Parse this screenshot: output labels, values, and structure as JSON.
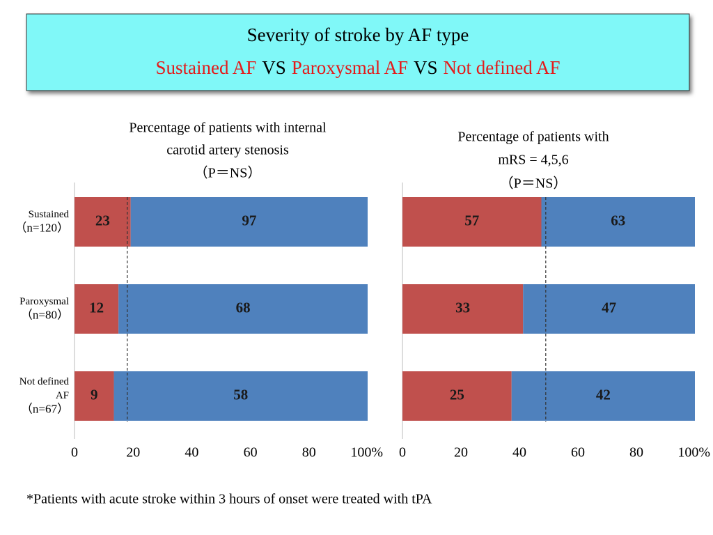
{
  "header": {
    "title": "Severity of stroke by AF type",
    "subtitle_parts": [
      {
        "text": "Sustained AF",
        "color": "#e41a1a"
      },
      {
        "text": "VS",
        "color": "#000000"
      },
      {
        "text": "Paroxysmal AF",
        "color": "#e41a1a"
      },
      {
        "text": "VS",
        "color": "#000000"
      },
      {
        "text": "Not defined AF",
        "color": "#e41a1a"
      }
    ]
  },
  "chart_data": [
    {
      "type": "stacked_bar_percent",
      "orientation": "horizontal",
      "title": [
        "Percentage of patients with internal",
        "carotid artery stenosis",
        "（P＝NS）"
      ],
      "categories": [
        [
          "Sustained",
          "（n=120）"
        ],
        [
          "Paroxysmal",
          "（n=80）"
        ],
        [
          "Not defined",
          "AF",
          "（n=67）"
        ]
      ],
      "series": [
        {
          "color": "#c0504d",
          "values": [
            23,
            12,
            9
          ]
        },
        {
          "color": "#4f81bd",
          "values": [
            97,
            68,
            58
          ]
        }
      ],
      "xlim": [
        0,
        100
      ],
      "xticks": [
        0,
        20,
        40,
        60,
        80,
        {
          "value": 100,
          "label": "100%"
        }
      ],
      "reference_line": 18
    },
    {
      "type": "stacked_bar_percent",
      "orientation": "horizontal",
      "title": [
        "Percentage of patients with",
        "mRS = 4,5,6",
        "（P＝NS）"
      ],
      "categories": [
        [
          "Sustained",
          "（n=120）"
        ],
        [
          "Paroxysmal",
          "（n=80）"
        ],
        [
          "Not defined",
          "AF",
          "（n=67）"
        ]
      ],
      "series": [
        {
          "color": "#c0504d",
          "values": [
            57,
            33,
            25
          ]
        },
        {
          "color": "#4f81bd",
          "values": [
            63,
            47,
            42
          ]
        }
      ],
      "xlim": [
        0,
        100
      ],
      "xticks": [
        0,
        20,
        40,
        60,
        80,
        {
          "value": 100,
          "label": "100%"
        }
      ],
      "reference_line": 49
    }
  ],
  "footnote": "*Patients with acute stroke within 3 hours of onset were treated with tPA"
}
